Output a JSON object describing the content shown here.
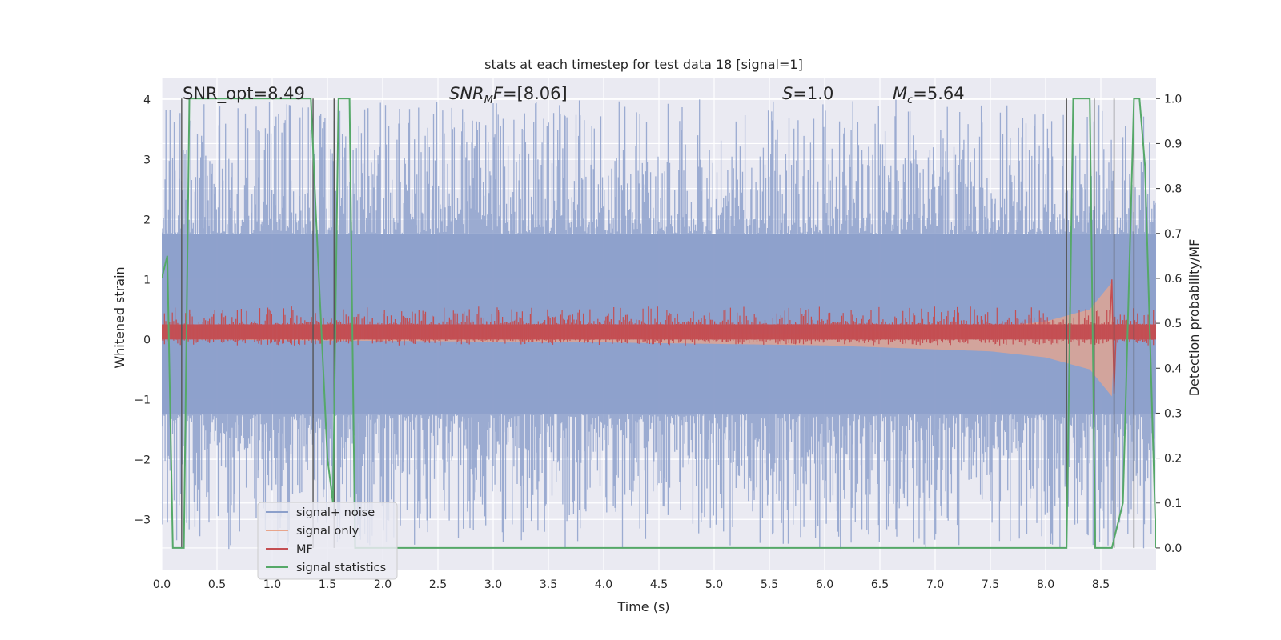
{
  "chart_data": {
    "type": "line",
    "title": "stats at each timestep for test data 18 [signal=1]",
    "xlabel": "Time (s)",
    "ylabel": "Whitened strain",
    "y2label": "Detection probability/MF",
    "xlim": [
      0.0,
      9.0
    ],
    "ylim": [
      -3.85,
      4.35
    ],
    "y2lim": [
      -0.05,
      1.045
    ],
    "x_ticks": [
      "0.0",
      "0.5",
      "1.0",
      "1.5",
      "2.0",
      "2.5",
      "3.0",
      "3.5",
      "4.0",
      "4.5",
      "5.0",
      "5.5",
      "6.0",
      "6.5",
      "7.0",
      "7.5",
      "8.0",
      "8.5"
    ],
    "y_ticks": [
      "−3",
      "−2",
      "−1",
      "0",
      "1",
      "2",
      "3",
      "4"
    ],
    "y2_ticks": [
      "0.0",
      "0.1",
      "0.2",
      "0.3",
      "0.4",
      "0.5",
      "0.6",
      "0.7",
      "0.8",
      "0.9",
      "1.0"
    ],
    "grid": true,
    "legend_position": "lower-left",
    "annotations": [
      {
        "text": "SNR_opt=8.49",
        "style": "normal"
      },
      {
        "text": "SNRMF=[8.06]",
        "style": "math"
      },
      {
        "text": "S=1.0",
        "style": "math"
      },
      {
        "text": "Mc=5.64",
        "style": "math"
      }
    ],
    "series": [
      {
        "name": "signal+ noise",
        "color": "#8da0cb",
        "axis": "left",
        "band": [
          -1.25,
          1.75
        ],
        "peak_range": [
          -3.5,
          4.0
        ]
      },
      {
        "name": "signal only",
        "color": "#e8a58c",
        "axis": "left",
        "envelope": {
          "x": [
            0.0,
            4.0,
            6.0,
            7.5,
            8.0,
            8.4,
            8.6
          ],
          "amplitude": [
            0.0,
            0.05,
            0.1,
            0.2,
            0.3,
            0.5,
            0.95
          ]
        }
      },
      {
        "name": "MF",
        "color": "#c44e52",
        "axis": "left",
        "band": [
          0.0,
          0.25
        ],
        "peak_at": 8.6,
        "peak_value": 1.0
      },
      {
        "name": "signal statistics",
        "color": "#55a868",
        "axis": "right",
        "x": [
          0.0,
          0.05,
          0.1,
          0.2,
          0.25,
          0.3,
          1.35,
          1.4,
          1.5,
          1.55,
          1.6,
          1.65,
          1.7,
          1.75,
          1.8,
          8.19,
          8.25,
          8.4,
          8.45,
          8.6,
          8.7,
          8.8,
          8.85,
          8.9,
          9.0
        ],
        "y": [
          0.6,
          0.65,
          0.0,
          0.0,
          1.0,
          1.0,
          1.0,
          0.72,
          0.2,
          0.1,
          1.0,
          1.0,
          1.0,
          0.0,
          0.0,
          0.0,
          1.0,
          1.0,
          0.0,
          0.0,
          0.1,
          1.0,
          1.0,
          0.85,
          0.0
        ]
      }
    ],
    "vertical_markers": [
      0.18,
      1.37,
      1.56,
      8.19,
      8.44,
      8.62,
      8.8
    ]
  },
  "legend": {
    "items": [
      {
        "label": "signal+ noise",
        "color": "#8da0cb"
      },
      {
        "label": "signal only",
        "color": "#e8a58c"
      },
      {
        "label": "MF",
        "color": "#c44e52"
      },
      {
        "label": "signal statistics",
        "color": "#55a868"
      }
    ]
  },
  "colors": {
    "plot_background": "#eaeaf2",
    "grid": "#ffffff",
    "marker_lines": "#555555"
  }
}
